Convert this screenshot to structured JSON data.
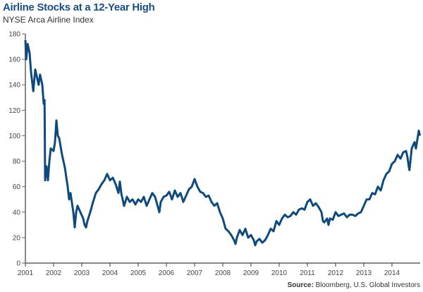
{
  "chart_data": {
    "type": "line",
    "title": "Airline Stocks at a 12-Year High",
    "subtitle": "NYSE Arca Airline Index",
    "source_label": "Source:",
    "source_text": "Bloomberg, U.S. Global Investors",
    "xlabel": "",
    "ylabel": "",
    "xlim": [
      2001,
      2015
    ],
    "ylim": [
      0,
      180
    ],
    "grid": false,
    "x_ticks": [
      "2001",
      "2002",
      "2003",
      "2004",
      "2005",
      "2006",
      "2007",
      "2008",
      "2009",
      "2010",
      "2011",
      "2012",
      "2013",
      "2014"
    ],
    "y_ticks": [
      "0",
      "20",
      "40",
      "60",
      "80",
      "100",
      "120",
      "140",
      "160",
      "180"
    ],
    "line_color": "#0f4a7e",
    "series": [
      {
        "points": [
          [
            2001.0,
            175
          ],
          [
            2001.03,
            160
          ],
          [
            2001.08,
            172
          ],
          [
            2001.15,
            165
          ],
          [
            2001.2,
            150
          ],
          [
            2001.28,
            135
          ],
          [
            2001.35,
            152
          ],
          [
            2001.42,
            145
          ],
          [
            2001.47,
            140
          ],
          [
            2001.52,
            148
          ],
          [
            2001.6,
            140
          ],
          [
            2001.65,
            125
          ],
          [
            2001.68,
            128
          ],
          [
            2001.7,
            65
          ],
          [
            2001.75,
            76
          ],
          [
            2001.8,
            65
          ],
          [
            2001.85,
            80
          ],
          [
            2001.9,
            90
          ],
          [
            2002.0,
            88
          ],
          [
            2002.05,
            95
          ],
          [
            2002.1,
            112
          ],
          [
            2002.15,
            100
          ],
          [
            2002.2,
            98
          ],
          [
            2002.3,
            85
          ],
          [
            2002.4,
            75
          ],
          [
            2002.5,
            60
          ],
          [
            2002.55,
            50
          ],
          [
            2002.6,
            55
          ],
          [
            2002.7,
            40
          ],
          [
            2002.75,
            28
          ],
          [
            2002.8,
            40
          ],
          [
            2002.85,
            45
          ],
          [
            2002.95,
            40
          ],
          [
            2003.05,
            35
          ],
          [
            2003.1,
            30
          ],
          [
            2003.15,
            28
          ],
          [
            2003.2,
            33
          ],
          [
            2003.3,
            40
          ],
          [
            2003.4,
            48
          ],
          [
            2003.5,
            55
          ],
          [
            2003.6,
            58
          ],
          [
            2003.7,
            62
          ],
          [
            2003.8,
            65
          ],
          [
            2003.9,
            70
          ],
          [
            2004.0,
            65
          ],
          [
            2004.1,
            67
          ],
          [
            2004.2,
            62
          ],
          [
            2004.3,
            55
          ],
          [
            2004.35,
            64
          ],
          [
            2004.4,
            55
          ],
          [
            2004.5,
            45
          ],
          [
            2004.6,
            52
          ],
          [
            2004.7,
            48
          ],
          [
            2004.8,
            50
          ],
          [
            2004.9,
            46
          ],
          [
            2005.0,
            50
          ],
          [
            2005.1,
            48
          ],
          [
            2005.2,
            52
          ],
          [
            2005.3,
            45
          ],
          [
            2005.4,
            50
          ],
          [
            2005.5,
            55
          ],
          [
            2005.6,
            52
          ],
          [
            2005.7,
            44
          ],
          [
            2005.75,
            40
          ],
          [
            2005.8,
            48
          ],
          [
            2005.9,
            52
          ],
          [
            2006.0,
            53
          ],
          [
            2006.1,
            56
          ],
          [
            2006.2,
            50
          ],
          [
            2006.3,
            57
          ],
          [
            2006.4,
            52
          ],
          [
            2006.5,
            55
          ],
          [
            2006.6,
            48
          ],
          [
            2006.7,
            53
          ],
          [
            2006.8,
            58
          ],
          [
            2006.9,
            60
          ],
          [
            2007.0,
            66
          ],
          [
            2007.05,
            63
          ],
          [
            2007.1,
            60
          ],
          [
            2007.2,
            56
          ],
          [
            2007.3,
            55
          ],
          [
            2007.4,
            52
          ],
          [
            2007.5,
            53
          ],
          [
            2007.6,
            48
          ],
          [
            2007.7,
            45
          ],
          [
            2007.8,
            47
          ],
          [
            2007.9,
            40
          ],
          [
            2008.0,
            35
          ],
          [
            2008.1,
            27
          ],
          [
            2008.2,
            25
          ],
          [
            2008.3,
            22
          ],
          [
            2008.4,
            18
          ],
          [
            2008.45,
            15
          ],
          [
            2008.5,
            20
          ],
          [
            2008.6,
            26
          ],
          [
            2008.7,
            22
          ],
          [
            2008.8,
            27
          ],
          [
            2008.9,
            20
          ],
          [
            2009.0,
            22
          ],
          [
            2009.1,
            18
          ],
          [
            2009.15,
            14
          ],
          [
            2009.2,
            17
          ],
          [
            2009.3,
            19
          ],
          [
            2009.4,
            16
          ],
          [
            2009.5,
            18
          ],
          [
            2009.6,
            22
          ],
          [
            2009.7,
            27
          ],
          [
            2009.8,
            25
          ],
          [
            2009.9,
            33
          ],
          [
            2010.0,
            30
          ],
          [
            2010.1,
            35
          ],
          [
            2010.2,
            38
          ],
          [
            2010.3,
            36
          ],
          [
            2010.4,
            37
          ],
          [
            2010.5,
            40
          ],
          [
            2010.6,
            38
          ],
          [
            2010.7,
            42
          ],
          [
            2010.8,
            43
          ],
          [
            2010.9,
            42
          ],
          [
            2011.0,
            48
          ],
          [
            2011.1,
            50
          ],
          [
            2011.2,
            45
          ],
          [
            2011.3,
            47
          ],
          [
            2011.4,
            44
          ],
          [
            2011.5,
            40
          ],
          [
            2011.55,
            33
          ],
          [
            2011.6,
            32
          ],
          [
            2011.7,
            35
          ],
          [
            2011.75,
            30
          ],
          [
            2011.8,
            35
          ],
          [
            2011.9,
            34
          ],
          [
            2012.0,
            40
          ],
          [
            2012.1,
            37
          ],
          [
            2012.2,
            38
          ],
          [
            2012.3,
            39
          ],
          [
            2012.4,
            36
          ],
          [
            2012.5,
            38
          ],
          [
            2012.6,
            38
          ],
          [
            2012.7,
            37
          ],
          [
            2012.8,
            39
          ],
          [
            2012.9,
            40
          ],
          [
            2013.0,
            45
          ],
          [
            2013.1,
            50
          ],
          [
            2013.2,
            50
          ],
          [
            2013.3,
            55
          ],
          [
            2013.4,
            54
          ],
          [
            2013.5,
            60
          ],
          [
            2013.6,
            57
          ],
          [
            2013.7,
            65
          ],
          [
            2013.8,
            70
          ],
          [
            2013.9,
            72
          ],
          [
            2014.0,
            78
          ],
          [
            2014.1,
            80
          ],
          [
            2014.2,
            85
          ],
          [
            2014.3,
            82
          ],
          [
            2014.4,
            87
          ],
          [
            2014.5,
            88
          ],
          [
            2014.55,
            83
          ],
          [
            2014.6,
            75
          ],
          [
            2014.62,
            73
          ],
          [
            2014.7,
            90
          ],
          [
            2014.8,
            95
          ],
          [
            2014.85,
            90
          ],
          [
            2014.9,
            97
          ],
          [
            2014.95,
            104
          ],
          [
            2014.99,
            100
          ]
        ]
      }
    ]
  }
}
